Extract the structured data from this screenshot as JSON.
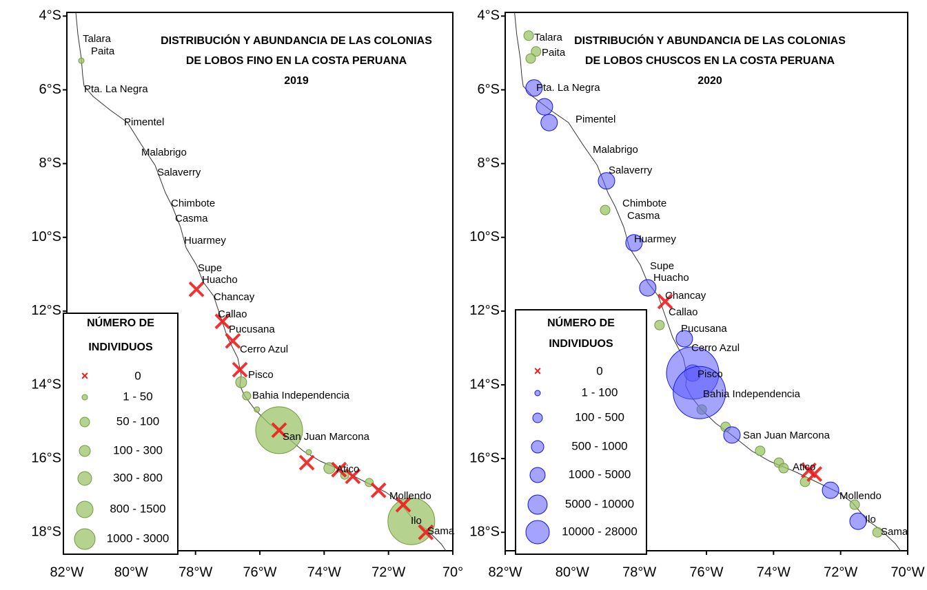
{
  "chart_data": [
    {
      "type": "map",
      "title": [
        "DISTRIBUCIÓN Y ABUNDANCIA DE LAS COLONIAS",
        "DE LOBOS FINO EN LA COSTA PERUANA",
        "2019"
      ],
      "xlim": [
        -82,
        -70
      ],
      "ylim": [
        -18.5,
        -3.9
      ],
      "xticks": [
        {
          "value": -82,
          "label": "82°W"
        },
        {
          "value": -80,
          "label": "80°W"
        },
        {
          "value": -78,
          "label": "78°W"
        },
        {
          "value": -76,
          "label": "76°W"
        },
        {
          "value": -74,
          "label": "74°W"
        },
        {
          "value": -72,
          "label": "72°W"
        },
        {
          "value": -70,
          "label": "70°"
        }
      ],
      "yticks": [
        {
          "value": -4,
          "label": "4°S"
        },
        {
          "value": -6,
          "label": "6°S"
        },
        {
          "value": -8,
          "label": "8°S"
        },
        {
          "value": -10,
          "label": "10°S"
        },
        {
          "value": -12,
          "label": "12°S"
        },
        {
          "value": -14,
          "label": "14°S"
        },
        {
          "value": -16,
          "label": "16°S"
        },
        {
          "value": -18,
          "label": "18°S"
        }
      ],
      "places": [
        "Talara",
        "Paita",
        "Pta. La Negra",
        "Pimentel",
        "Malabrigo",
        "Salaverry",
        "Chimbote",
        "Casma",
        "Huarmey",
        "Supe",
        "Huacho",
        "Chancay",
        "Callao",
        "Pucusana",
        "Cerro Azul",
        "Pisco",
        "Bahia Independencia",
        "San Juan Marcona",
        "Atico",
        "Mollendo",
        "Ilo",
        "Sama"
      ],
      "legend_title": [
        "NÚMERO DE",
        "INDIVIDUOS"
      ],
      "series": [
        {
          "name": "1 - 50",
          "marker": "circle",
          "color": "#9cc46a",
          "x": [
            -81.55,
            -76.09,
            -74.48
          ],
          "y": [
            -5.21,
            -14.67,
            -15.83
          ]
        },
        {
          "name": "50 - 100",
          "marker": "circle",
          "color": "#9cc46a",
          "x": [
            -76.41,
            -73.36,
            -72.6
          ],
          "y": [
            -14.3,
            -16.45,
            -16.65
          ]
        },
        {
          "name": "100 - 300",
          "marker": "circle",
          "color": "#9cc46a",
          "x": [
            -76.58,
            -73.84
          ],
          "y": [
            -13.93,
            -16.26
          ]
        },
        {
          "name": "300 - 800",
          "marker": "circle",
          "color": "#9cc46a",
          "x": [],
          "y": []
        },
        {
          "name": "800 - 1500",
          "marker": "circle",
          "color": "#9cc46a",
          "x": [],
          "y": []
        },
        {
          "name": "1000 - 3000",
          "marker": "circle",
          "color": "#9cc46a",
          "x": [
            -75.4,
            -71.29
          ],
          "y": [
            -15.23,
            -17.7
          ]
        },
        {
          "name": "0",
          "marker": "x",
          "color": "#ee1c1c",
          "x": [
            -77.97,
            -77.16,
            -76.84,
            -76.62,
            -75.4,
            -74.54,
            -73.54,
            -73.11,
            -72.31,
            -71.54,
            -70.84
          ],
          "y": [
            -11.41,
            -12.28,
            -12.81,
            -13.59,
            -15.23,
            -16.11,
            -16.3,
            -16.48,
            -16.86,
            -17.25,
            -18.0
          ]
        }
      ],
      "legend_order": [
        6,
        0,
        1,
        2,
        3,
        4,
        5
      ]
    },
    {
      "type": "map",
      "title": [
        "DISTRIBUCIÓN Y ABUNDANCIA DE LAS COLONIAS",
        "DE LOBOS CHUSCOS EN LA COSTA PERUANA",
        "2020"
      ],
      "xlim": [
        -82,
        -70
      ],
      "ylim": [
        -18.5,
        -3.9
      ],
      "xticks": [
        {
          "value": -82,
          "label": "82°W"
        },
        {
          "value": -80,
          "label": "80°W"
        },
        {
          "value": -78,
          "label": "78°W"
        },
        {
          "value": -76,
          "label": "76°W"
        },
        {
          "value": -74,
          "label": "74°W"
        },
        {
          "value": -72,
          "label": "72°W"
        },
        {
          "value": -70,
          "label": "70°W"
        }
      ],
      "yticks": [
        {
          "value": -4,
          "label": "4°S"
        },
        {
          "value": -6,
          "label": "6°S"
        },
        {
          "value": -8,
          "label": "8°S"
        },
        {
          "value": -10,
          "label": "10°S"
        },
        {
          "value": -12,
          "label": "12°S"
        },
        {
          "value": -14,
          "label": "14°S"
        },
        {
          "value": -16,
          "label": "16°S"
        },
        {
          "value": -18,
          "label": "18°S"
        }
      ],
      "places": [
        "Talara",
        "Paita",
        "Pta. La Negra",
        "Pimentel",
        "Malabrigo",
        "Salaverry",
        "Chimbote",
        "Casma",
        "Huarmey",
        "Supe",
        "Huacho",
        "Chancay",
        "Callao",
        "Pucusana",
        "Cerro Azul",
        "Pisco",
        "Bahia Independencia",
        "San Juan Marcona",
        "Atico",
        "Mollendo",
        "Ilo",
        "Sama"
      ],
      "legend_title": [
        "NÚMERO DE",
        "INDIVIDUOS"
      ],
      "series": [
        {
          "marker": "circle",
          "color": "#9cc46a",
          "x": [
            -81.3,
            -81.08,
            -81.24,
            -79.02,
            -77.4,
            -76.14,
            -75.43,
            -74.4,
            -73.84,
            -73.7,
            -73.06,
            -71.58,
            -70.9
          ],
          "y": [
            -4.53,
            -4.96,
            -5.15,
            -9.26,
            -12.38,
            -14.67,
            -15.14,
            -15.79,
            -16.11,
            -16.26,
            -16.63,
            -17.25,
            -18.0
          ]
        },
        {
          "name": "1 - 100",
          "marker": "circle",
          "color": "#5a5aff",
          "x": [],
          "y": []
        },
        {
          "name": "100 - 500",
          "marker": "circle",
          "color": "#5a5aff",
          "x": [],
          "y": []
        },
        {
          "name": "500 - 1000",
          "marker": "circle",
          "color": "#5a5aff",
          "x": [],
          "y": []
        },
        {
          "name": "1000 - 5000",
          "marker": "circle",
          "color": "#5a5aff",
          "x": [
            -81.14,
            -80.83,
            -80.69,
            -78.98,
            -78.16,
            -77.75,
            -76.66,
            -76.41,
            -75.24,
            -72.3,
            -71.48
          ],
          "y": [
            -5.95,
            -6.46,
            -6.89,
            -8.47,
            -10.15,
            -11.37,
            -12.75,
            -13.68,
            -15.36,
            -16.86,
            -17.7
          ]
        },
        {
          "name": "5000 - 10000",
          "marker": "circle",
          "color": "#5a5aff",
          "x": [],
          "y": []
        },
        {
          "name": "10000 - 28000",
          "marker": "circle",
          "color": "#5a5aff",
          "x": [
            -76.41,
            -76.21
          ],
          "y": [
            -13.68,
            -14.21
          ]
        },
        {
          "name": "0",
          "marker": "x",
          "color": "#ee1c1c",
          "x": [
            -77.23,
            -72.95,
            -72.78
          ],
          "y": [
            -11.74,
            -16.32,
            -16.42
          ]
        }
      ],
      "legend_order": [
        7,
        1,
        2,
        3,
        4,
        5,
        6
      ]
    }
  ]
}
